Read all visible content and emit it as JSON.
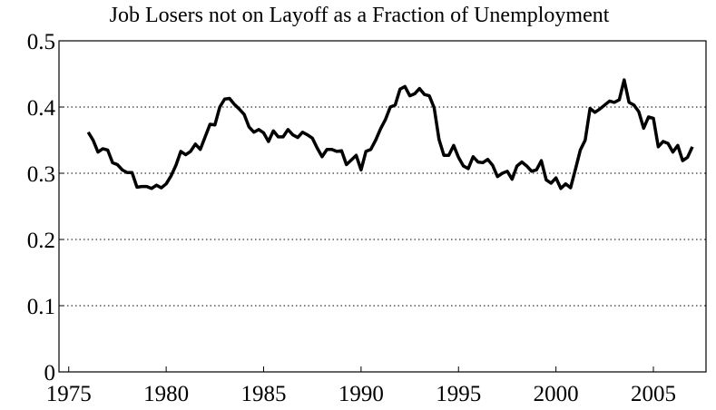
{
  "chart_data": {
    "type": "line",
    "title": "Job Losers not on Layoff as a Fraction of Unemployment",
    "x": [
      1976.0,
      1976.25,
      1976.5,
      1976.75,
      1977.0,
      1977.25,
      1977.5,
      1977.75,
      1978.0,
      1978.25,
      1978.5,
      1978.75,
      1979.0,
      1979.25,
      1979.5,
      1979.75,
      1980.0,
      1980.25,
      1980.5,
      1980.75,
      1981.0,
      1981.25,
      1981.5,
      1981.75,
      1982.0,
      1982.25,
      1982.5,
      1982.75,
      1983.0,
      1983.25,
      1983.5,
      1983.75,
      1984.0,
      1984.25,
      1984.5,
      1984.75,
      1985.0,
      1985.25,
      1985.5,
      1985.75,
      1986.0,
      1986.25,
      1986.5,
      1986.75,
      1987.0,
      1987.25,
      1987.5,
      1987.75,
      1988.0,
      1988.25,
      1988.5,
      1988.75,
      1989.0,
      1989.25,
      1989.5,
      1989.75,
      1990.0,
      1990.25,
      1990.5,
      1990.75,
      1991.0,
      1991.25,
      1991.5,
      1991.75,
      1992.0,
      1992.25,
      1992.5,
      1992.75,
      1993.0,
      1993.25,
      1993.5,
      1993.75,
      1994.0,
      1994.25,
      1994.5,
      1994.75,
      1995.0,
      1995.25,
      1995.5,
      1995.75,
      1996.0,
      1996.25,
      1996.5,
      1996.75,
      1997.0,
      1997.25,
      1997.5,
      1997.75,
      1998.0,
      1998.25,
      1998.5,
      1998.75,
      1999.0,
      1999.25,
      1999.5,
      1999.75,
      2000.0,
      2000.25,
      2000.5,
      2000.75,
      2001.0,
      2001.25,
      2001.5,
      2001.75,
      2002.0,
      2002.25,
      2002.5,
      2002.75,
      2003.0,
      2003.25,
      2003.5,
      2003.75,
      2004.0,
      2004.25,
      2004.5,
      2004.75,
      2005.0,
      2005.25,
      2005.5,
      2005.75,
      2006.0,
      2006.25,
      2006.5,
      2006.75,
      2007.0
    ],
    "series": [
      {
        "color": "#000000",
        "values": [
          0.362,
          0.35,
          0.332,
          0.337,
          0.335,
          0.316,
          0.313,
          0.305,
          0.301,
          0.301,
          0.279,
          0.28,
          0.28,
          0.277,
          0.282,
          0.278,
          0.284,
          0.296,
          0.312,
          0.333,
          0.328,
          0.333,
          0.344,
          0.336,
          0.355,
          0.374,
          0.373,
          0.4,
          0.412,
          0.413,
          0.404,
          0.397,
          0.389,
          0.37,
          0.362,
          0.366,
          0.361,
          0.348,
          0.364,
          0.355,
          0.355,
          0.366,
          0.358,
          0.354,
          0.362,
          0.358,
          0.353,
          0.338,
          0.325,
          0.336,
          0.336,
          0.333,
          0.334,
          0.313,
          0.32,
          0.327,
          0.305,
          0.333,
          0.336,
          0.35,
          0.367,
          0.381,
          0.4,
          0.403,
          0.427,
          0.431,
          0.417,
          0.42,
          0.428,
          0.419,
          0.417,
          0.399,
          0.351,
          0.327,
          0.327,
          0.342,
          0.324,
          0.311,
          0.307,
          0.325,
          0.317,
          0.316,
          0.321,
          0.312,
          0.295,
          0.3,
          0.303,
          0.291,
          0.311,
          0.317,
          0.311,
          0.303,
          0.305,
          0.319,
          0.29,
          0.285,
          0.293,
          0.277,
          0.284,
          0.278,
          0.306,
          0.335,
          0.35,
          0.398,
          0.392,
          0.397,
          0.403,
          0.409,
          0.407,
          0.411,
          0.441,
          0.407,
          0.403,
          0.393,
          0.368,
          0.385,
          0.383,
          0.34,
          0.348,
          0.345,
          0.332,
          0.342,
          0.319,
          0.324,
          0.34
        ]
      }
    ],
    "xlim": [
      1974.5,
      2007.7
    ],
    "xticks": [
      1975,
      1980,
      1985,
      1990,
      1995,
      2000,
      2005
    ],
    "ylim": [
      0,
      0.5
    ],
    "yticks": [
      0,
      0.1,
      0.2,
      0.3,
      0.4,
      0.5
    ],
    "grid": true
  }
}
